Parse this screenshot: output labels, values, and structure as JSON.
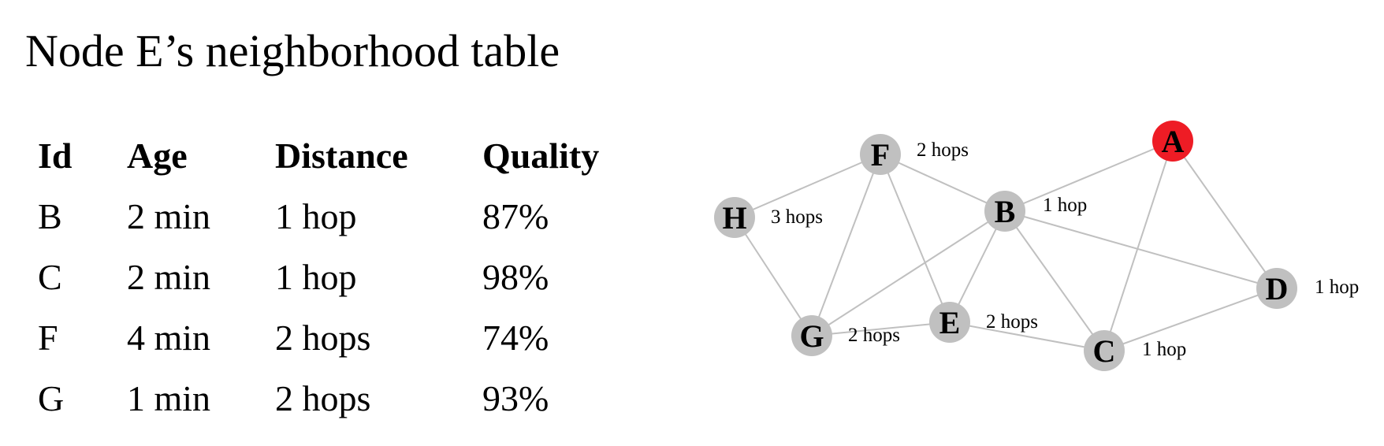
{
  "title": "Node E’s neighborhood table",
  "table": {
    "headers": [
      "Id",
      "Age",
      "Distance",
      "Quality"
    ],
    "rows": [
      [
        "B",
        "2 min",
        "1 hop",
        "87%"
      ],
      [
        "C",
        "2 min",
        "1 hop",
        "98%"
      ],
      [
        "F",
        "4 min",
        "2 hops",
        "74%"
      ],
      [
        "G",
        "1 min",
        "2 hops",
        "93%"
      ]
    ]
  },
  "graph": {
    "colors": {
      "node": "#c0c0c0",
      "highlight": "#ee1c25",
      "edge": "#c0c0c0"
    },
    "nodes": [
      {
        "id": "A",
        "hops": "",
        "highlight": true
      },
      {
        "id": "B",
        "hops": "1 hop",
        "highlight": false
      },
      {
        "id": "C",
        "hops": "1 hop",
        "highlight": false
      },
      {
        "id": "D",
        "hops": "1 hop",
        "highlight": false
      },
      {
        "id": "E",
        "hops": "2 hops",
        "highlight": false
      },
      {
        "id": "F",
        "hops": "2 hops",
        "highlight": false
      },
      {
        "id": "G",
        "hops": "2 hops",
        "highlight": false
      },
      {
        "id": "H",
        "hops": "3 hops",
        "highlight": false
      }
    ],
    "edges": [
      [
        "A",
        "B"
      ],
      [
        "A",
        "C"
      ],
      [
        "A",
        "D"
      ],
      [
        "F",
        "B"
      ],
      [
        "F",
        "H"
      ],
      [
        "F",
        "G"
      ],
      [
        "F",
        "E"
      ],
      [
        "B",
        "E"
      ],
      [
        "B",
        "G"
      ],
      [
        "B",
        "C"
      ],
      [
        "B",
        "D"
      ],
      [
        "H",
        "G"
      ],
      [
        "G",
        "E"
      ],
      [
        "E",
        "C"
      ],
      [
        "C",
        "D"
      ]
    ]
  }
}
